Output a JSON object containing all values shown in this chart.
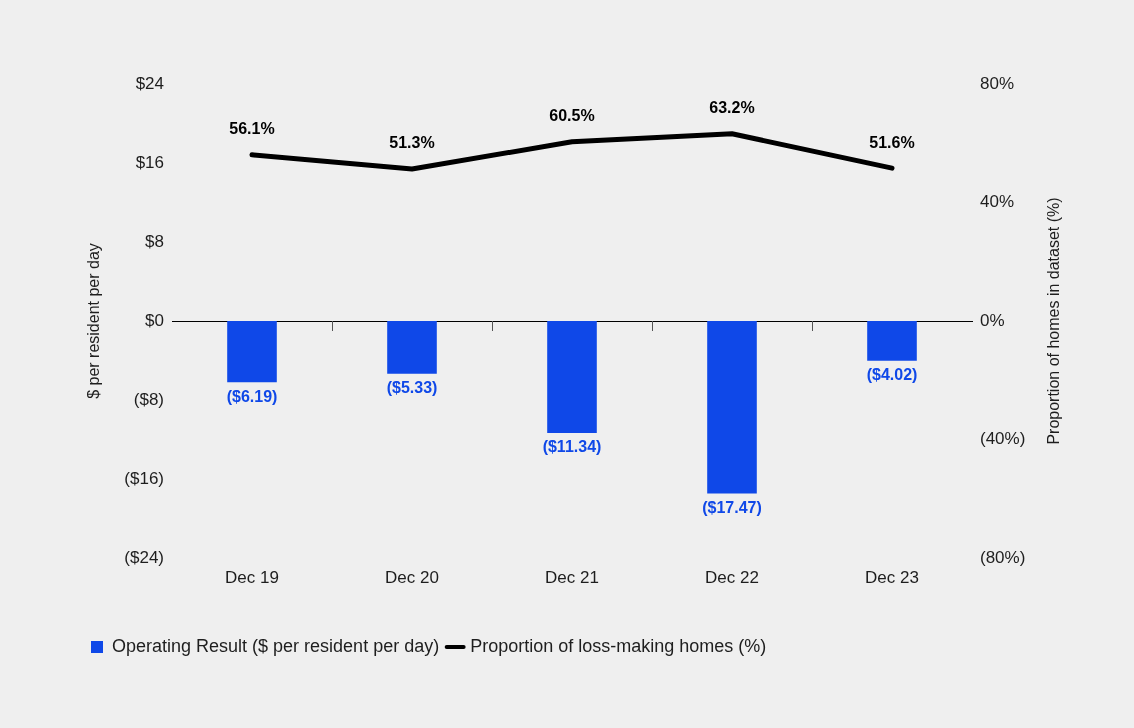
{
  "chart_data": {
    "type": "bar",
    "ylabel": "$ per resident per day",
    "y2label": "Proportion of homes in dataset (%)",
    "categories": [
      "Dec 19",
      "Dec 20",
      "Dec 21",
      "Dec 22",
      "Dec 23"
    ],
    "series": [
      {
        "name": "Operating Result ($ per resident per day)",
        "color": "#0f48e8",
        "values": [
          -6.19,
          -5.33,
          -11.34,
          -17.47,
          -4.02
        ],
        "value_labels": [
          "($6.19)",
          "($5.33)",
          "($11.34)",
          "($17.47)",
          "($4.02)"
        ]
      },
      {
        "name": "Proportion of loss-making homes (%)",
        "type": "line",
        "axis": "y2",
        "color": "#000000",
        "values": [
          56.1,
          51.3,
          60.5,
          63.2,
          51.6
        ],
        "value_labels": [
          "56.1%",
          "51.3%",
          "60.5%",
          "63.2%",
          "51.6%"
        ]
      }
    ],
    "ylim": [
      -24,
      24
    ],
    "yticks": [
      {
        "value": -24,
        "label": "($24)"
      },
      {
        "value": -16,
        "label": "($16)"
      },
      {
        "value": -8,
        "label": "($8)"
      },
      {
        "value": 0,
        "label": "$0"
      },
      {
        "value": 8,
        "label": "$8"
      },
      {
        "value": 16,
        "label": "$16"
      },
      {
        "value": 24,
        "label": "$24"
      }
    ],
    "y2lim": [
      -80,
      80
    ],
    "y2ticks": [
      {
        "value": -80,
        "label": "(80%)"
      },
      {
        "value": -40,
        "label": "(40%)"
      },
      {
        "value": 0,
        "label": "0%"
      },
      {
        "value": 40,
        "label": "40%"
      },
      {
        "value": 80,
        "label": "80%"
      }
    ],
    "legend": "bottom left"
  }
}
